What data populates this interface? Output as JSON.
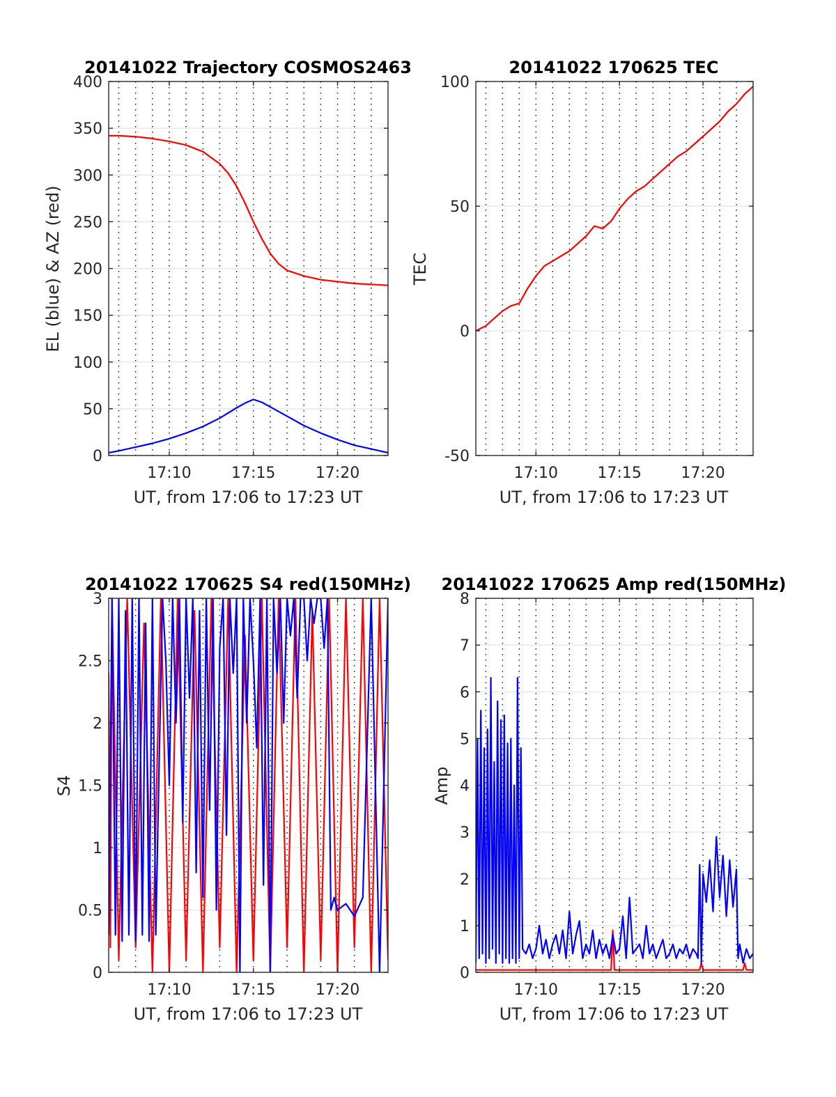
{
  "figure": {
    "panels": [
      {
        "id": "trajectory",
        "title": "20141022 Trajectory COSMOS2463",
        "xlabel": "UT, from 17:06 to 17:23 UT",
        "ylabel": "EL (blue) & AZ (red)"
      },
      {
        "id": "tec",
        "title": "20141022 170625 TEC",
        "xlabel": "UT, from 17:06 to 17:23 UT",
        "ylabel": "TEC"
      },
      {
        "id": "s4",
        "title": "20141022 170625 S4 red(150MHz)",
        "xlabel": "UT, from 17:06 to 17:23 UT",
        "ylabel": "S4"
      },
      {
        "id": "amp",
        "title": "20141022 170625 Amp red(150MHz)",
        "xlabel": "UT, from 17:06 to 17:23 UT",
        "ylabel": "Amp"
      }
    ]
  },
  "chart_data": [
    {
      "type": "line",
      "title": "20141022 Trajectory COSMOS2463",
      "xlabel": "UT, from 17:06 to 17:23 UT",
      "ylabel": "EL (blue) & AZ (red)",
      "x_unit": "minutes after 17:00 UT",
      "xlim": [
        6.4,
        23.0
      ],
      "ylim": [
        0,
        400
      ],
      "xticks": [
        10,
        15,
        20
      ],
      "xtick_labels": [
        "17:10",
        "17:15",
        "17:20"
      ],
      "yticks": [
        0,
        50,
        100,
        150,
        200,
        250,
        300,
        350,
        400
      ],
      "vertical_grid_minutes": [
        7,
        8,
        9,
        10,
        11,
        12,
        13,
        14,
        15,
        16,
        17,
        18,
        19,
        20,
        21,
        22
      ],
      "grid": true,
      "series": [
        {
          "color": "#ff0000",
          "x": [
            6.4,
            7,
            8,
            9,
            10,
            11,
            12,
            13,
            13.5,
            14,
            14.5,
            15,
            15.5,
            16,
            16.5,
            17,
            18,
            19,
            20,
            21,
            22,
            23
          ],
          "y": [
            342,
            342,
            341,
            339,
            336,
            332,
            325,
            312,
            302,
            288,
            270,
            250,
            232,
            216,
            205,
            198,
            192,
            188,
            186,
            184,
            183,
            182
          ]
        },
        {
          "color": "#0000ff",
          "x": [
            6.4,
            7,
            8,
            9,
            10,
            11,
            12,
            13,
            14,
            14.5,
            15,
            15.5,
            16,
            17,
            18,
            19,
            20,
            21,
            22,
            23
          ],
          "y": [
            3,
            5,
            9,
            13,
            18,
            24,
            31,
            40,
            51,
            56,
            60,
            57,
            52,
            42,
            32,
            24,
            17,
            11,
            7,
            3
          ]
        }
      ]
    },
    {
      "type": "line",
      "title": "20141022 170625 TEC",
      "xlabel": "UT, from 17:06 to 17:23 UT",
      "ylabel": "TEC",
      "x_unit": "minutes after 17:00 UT",
      "xlim": [
        6.4,
        23.0
      ],
      "ylim": [
        -50,
        100
      ],
      "xticks": [
        10,
        15,
        20
      ],
      "xtick_labels": [
        "17:10",
        "17:15",
        "17:20"
      ],
      "yticks": [
        -50,
        0,
        50,
        100
      ],
      "vertical_grid_minutes": [
        7,
        8,
        9,
        10,
        11,
        12,
        13,
        14,
        15,
        16,
        17,
        18,
        19,
        20,
        21,
        22
      ],
      "grid": true,
      "series": [
        {
          "color": "#ff0000",
          "x": [
            6.4,
            7,
            7.5,
            8,
            8.5,
            9,
            9.5,
            10,
            10.5,
            11,
            11.5,
            12,
            12.5,
            13,
            13.5,
            14,
            14.5,
            15,
            15.5,
            16,
            16.5,
            17,
            17.5,
            18,
            18.5,
            19,
            19.5,
            20,
            20.5,
            21,
            21.5,
            22,
            22.5,
            23
          ],
          "y": [
            0,
            2,
            5,
            8,
            10,
            11,
            17,
            22,
            26,
            28,
            30,
            32,
            35,
            38,
            42,
            41,
            44,
            49,
            53,
            56,
            58,
            61,
            64,
            67,
            70,
            72,
            75,
            78,
            81,
            84,
            88,
            91,
            95,
            98
          ]
        }
      ]
    },
    {
      "type": "line",
      "title": "20141022 170625 S4 red(150MHz)",
      "xlabel": "UT, from 17:06 to 17:23 UT",
      "ylabel": "S4",
      "x_unit": "minutes after 17:00 UT",
      "xlim": [
        6.4,
        23.0
      ],
      "ylim": [
        0,
        3
      ],
      "xticks": [
        10,
        15,
        20
      ],
      "xtick_labels": [
        "17:10",
        "17:15",
        "17:20"
      ],
      "yticks": [
        0,
        0.5,
        1,
        1.5,
        2,
        2.5,
        3
      ],
      "ytick_labels": [
        "0",
        "0.5",
        "1",
        "1.5",
        "2",
        "2.5",
        "3"
      ],
      "vertical_grid_minutes": [
        7,
        8,
        9,
        10,
        11,
        12,
        13,
        14,
        15,
        16,
        17,
        18,
        19,
        20,
        21,
        22
      ],
      "grid": true,
      "series": [
        {
          "color": "#ff0000",
          "x": [
            6.4,
            6.5,
            6.6,
            7.0,
            7.5,
            8.0,
            8.5,
            9.0,
            9.5,
            10.0,
            10.5,
            11.0,
            11.5,
            12.0,
            12.5,
            13.0,
            13.5,
            14.0,
            14.5,
            15.0,
            15.5,
            16.0,
            16.5,
            17.0,
            17.5,
            18.0,
            18.5,
            19.0,
            19.5,
            20.0,
            20.5,
            21.0,
            21.5,
            22.0,
            22.5,
            23.0
          ],
          "y": [
            2.4,
            0.2,
            3.0,
            0.1,
            3.0,
            0.2,
            2.8,
            0.0,
            3.0,
            0.0,
            3.0,
            0.1,
            2.9,
            0.0,
            3.0,
            0.2,
            3.0,
            0.0,
            2.7,
            0.1,
            3.0,
            0.0,
            3.0,
            0.2,
            3.0,
            0.0,
            2.9,
            0.1,
            3.0,
            0.0,
            3.0,
            0.2,
            3.0,
            0.0,
            3.0,
            0.1
          ]
        },
        {
          "color": "#0000ff",
          "x": [
            6.4,
            6.6,
            6.8,
            7.0,
            7.2,
            7.4,
            7.6,
            7.8,
            8.0,
            8.2,
            8.4,
            8.6,
            8.8,
            9.0,
            9.2,
            9.4,
            9.6,
            9.8,
            10.0,
            10.2,
            10.4,
            10.6,
            10.8,
            11.0,
            11.2,
            11.4,
            11.6,
            11.8,
            12.0,
            12.2,
            12.4,
            12.6,
            12.8,
            13.0,
            13.2,
            13.4,
            13.6,
            13.8,
            14.0,
            14.2,
            14.4,
            14.6,
            14.8,
            15.0,
            15.2,
            15.4,
            15.6,
            15.8,
            16.0,
            16.2,
            16.4,
            16.6,
            16.8,
            17.0,
            17.2,
            17.4,
            17.6,
            17.8,
            18.0,
            18.2,
            18.4,
            18.6,
            18.8,
            19.0,
            19.2,
            19.4,
            19.6,
            19.8,
            20.0,
            20.5,
            21.0,
            21.5,
            22.0,
            22.5,
            23.0
          ],
          "y": [
            0.3,
            3.0,
            0.3,
            3.0,
            0.25,
            2.9,
            0.3,
            3.0,
            0.25,
            3.0,
            0.3,
            2.8,
            0.25,
            3.0,
            0.3,
            1.7,
            3.0,
            2.5,
            1.5,
            3.0,
            2.0,
            3.0,
            1.2,
            3.0,
            2.2,
            3.0,
            0.8,
            2.9,
            0.6,
            3.0,
            1.3,
            3.0,
            0.5,
            2.6,
            3.0,
            1.1,
            3.0,
            2.4,
            3.0,
            0.0,
            3.0,
            2.0,
            3.0,
            2.5,
            1.8,
            3.0,
            0.7,
            3.0,
            0.0,
            3.0,
            2.4,
            3.0,
            2.0,
            3.0,
            2.7,
            3.0,
            2.2,
            3.0,
            3.0,
            2.5,
            3.0,
            2.8,
            3.0,
            3.0,
            2.6,
            3.0,
            0.5,
            0.6,
            0.5,
            0.55,
            0.45,
            0.6,
            3.0,
            0.0,
            3.0
          ]
        }
      ]
    },
    {
      "type": "line",
      "title": "20141022 170625 Amp red(150MHz)",
      "xlabel": "UT, from 17:06 to 17:23 UT",
      "ylabel": "Amp",
      "x_unit": "minutes after 17:00 UT",
      "xlim": [
        6.4,
        23.0
      ],
      "ylim": [
        0,
        8
      ],
      "xticks": [
        10,
        15,
        20
      ],
      "xtick_labels": [
        "17:10",
        "17:15",
        "17:20"
      ],
      "yticks": [
        0,
        1,
        2,
        3,
        4,
        5,
        6,
        7,
        8
      ],
      "vertical_grid_minutes": [
        7,
        8,
        9,
        10,
        11,
        12,
        13,
        14,
        15,
        16,
        17,
        18,
        19,
        20,
        21,
        22
      ],
      "grid": true,
      "series": [
        {
          "color": "#ff0000",
          "x": [
            6.4,
            14.5,
            14.6,
            14.7,
            19.8,
            19.9,
            20.0,
            22.4,
            22.5,
            22.6,
            23.0
          ],
          "y": [
            0.05,
            0.05,
            0.9,
            0.05,
            0.05,
            0.2,
            0.05,
            0.05,
            0.2,
            0.05,
            0.05
          ]
        },
        {
          "color": "#0000ff",
          "x": [
            6.4,
            6.5,
            6.6,
            6.7,
            6.8,
            6.9,
            7.0,
            7.1,
            7.2,
            7.3,
            7.4,
            7.5,
            7.6,
            7.7,
            7.8,
            7.9,
            8.0,
            8.1,
            8.2,
            8.3,
            8.4,
            8.5,
            8.6,
            8.7,
            8.8,
            8.9,
            9.0,
            9.1,
            9.2,
            9.4,
            9.6,
            9.8,
            10.0,
            10.2,
            10.4,
            10.6,
            10.8,
            11.0,
            11.2,
            11.4,
            11.6,
            11.8,
            12.0,
            12.2,
            12.4,
            12.6,
            12.8,
            13.0,
            13.2,
            13.4,
            13.6,
            13.8,
            14.0,
            14.2,
            14.4,
            14.6,
            14.8,
            15.0,
            15.2,
            15.4,
            15.6,
            15.8,
            16.0,
            16.2,
            16.4,
            16.6,
            16.8,
            17.0,
            17.2,
            17.4,
            17.6,
            17.8,
            18.0,
            18.2,
            18.4,
            18.6,
            18.8,
            19.0,
            19.2,
            19.4,
            19.6,
            19.7,
            19.8,
            19.9,
            20.0,
            20.2,
            20.4,
            20.6,
            20.8,
            21.0,
            21.2,
            21.4,
            21.6,
            21.8,
            22.0,
            22.1,
            22.2,
            22.4,
            22.6,
            22.8,
            23.0
          ],
          "y": [
            0.2,
            5.0,
            0.3,
            5.6,
            0.4,
            4.8,
            0.2,
            5.2,
            0.3,
            6.3,
            0.5,
            4.5,
            0.2,
            5.8,
            0.4,
            5.4,
            0.2,
            5.5,
            0.3,
            4.9,
            0.2,
            5.0,
            0.3,
            4.0,
            0.2,
            6.3,
            0.3,
            4.8,
            0.5,
            0.4,
            0.6,
            0.3,
            0.5,
            1.0,
            0.4,
            0.7,
            0.3,
            0.6,
            0.8,
            0.4,
            0.9,
            0.3,
            1.3,
            0.4,
            0.8,
            1.1,
            0.3,
            0.6,
            0.4,
            0.9,
            0.3,
            0.7,
            0.4,
            0.6,
            0.3,
            0.8,
            0.4,
            0.5,
            1.2,
            0.3,
            1.6,
            0.4,
            0.5,
            0.6,
            0.3,
            1.0,
            0.4,
            0.6,
            0.3,
            0.5,
            0.7,
            0.3,
            0.4,
            0.6,
            0.3,
            0.5,
            0.4,
            0.6,
            0.3,
            0.5,
            0.4,
            0.3,
            2.3,
            0.2,
            2.1,
            1.5,
            2.4,
            1.3,
            2.9,
            1.6,
            2.5,
            1.2,
            2.4,
            1.4,
            2.2,
            0.3,
            0.6,
            0.2,
            0.5,
            0.3,
            0.4
          ]
        }
      ]
    }
  ]
}
